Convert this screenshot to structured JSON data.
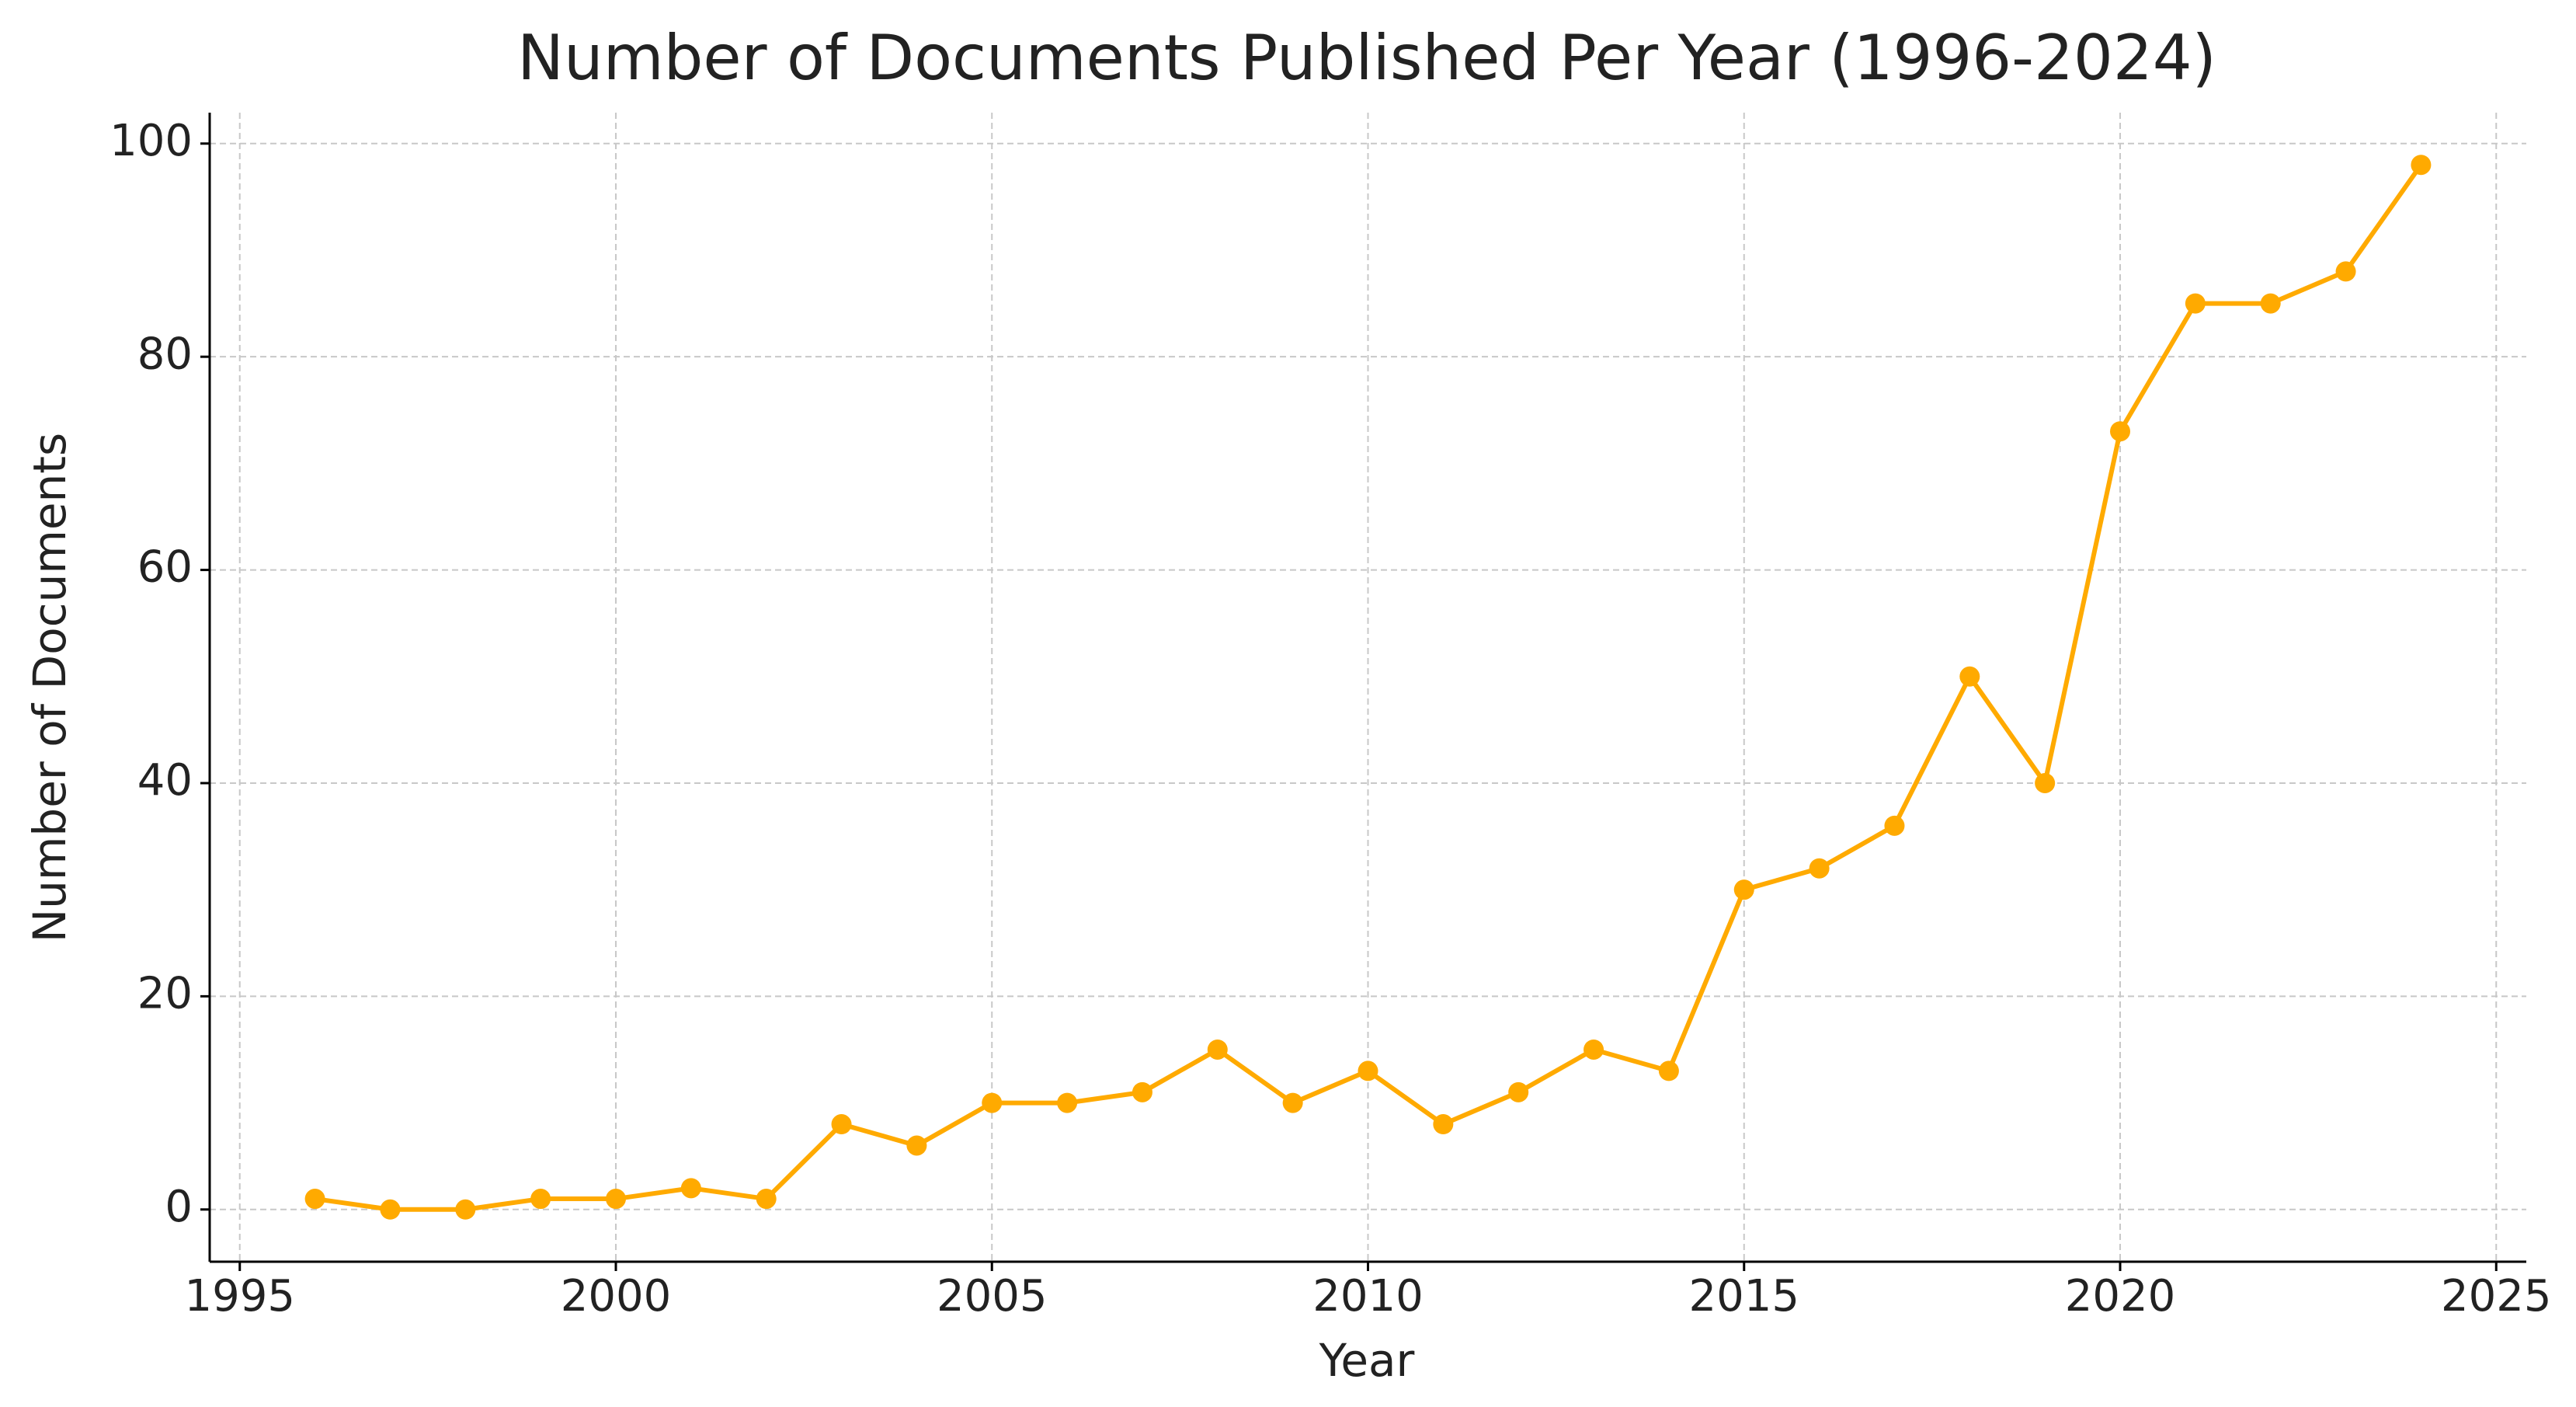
{
  "chart_data": {
    "type": "line",
    "title": "Number of Documents Published Per Year (1996-2024)",
    "x_label": "Year",
    "y_label": "Number of Documents",
    "x": [
      1996,
      1997,
      1998,
      1999,
      2000,
      2001,
      2002,
      2003,
      2004,
      2005,
      2006,
      2007,
      2008,
      2009,
      2010,
      2011,
      2012,
      2013,
      2014,
      2015,
      2016,
      2017,
      2018,
      2019,
      2020,
      2021,
      2022,
      2023,
      2024
    ],
    "values": [
      1,
      0,
      0,
      1,
      1,
      2,
      1,
      8,
      6,
      10,
      10,
      11,
      15,
      10,
      13,
      8,
      11,
      15,
      13,
      30,
      32,
      36,
      50,
      40,
      73,
      85,
      85,
      88,
      98
    ],
    "color": "#ffaa00",
    "xlim": [
      1994.6,
      2025.4
    ],
    "xticks": [
      1995,
      2000,
      2005,
      2010,
      2015,
      2020,
      2025
    ],
    "ylim": [
      -4.9,
      102.9
    ],
    "yticks": [
      0,
      20,
      40,
      60,
      80,
      100
    ],
    "grid": true,
    "markers": true
  }
}
